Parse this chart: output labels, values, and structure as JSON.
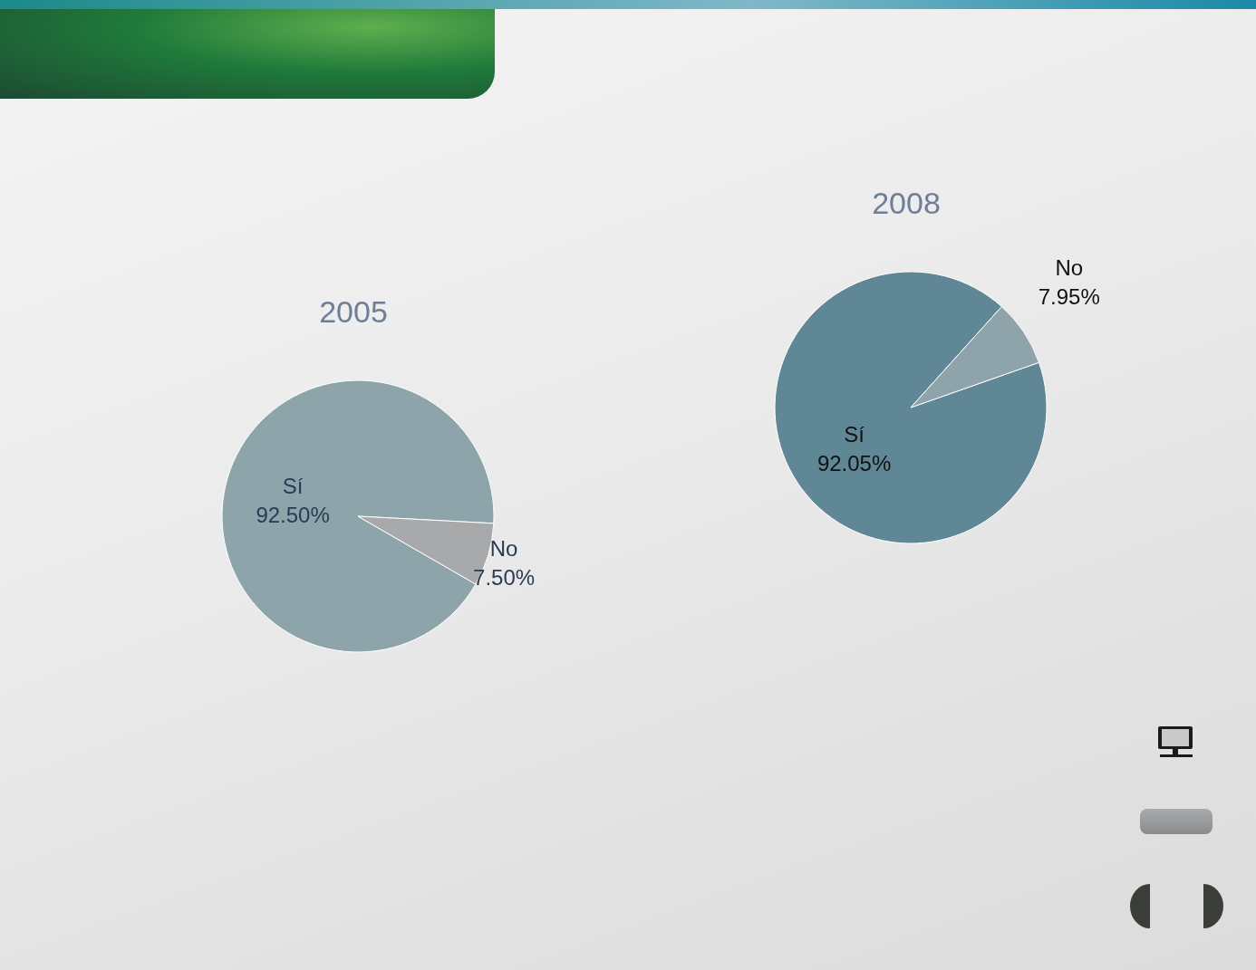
{
  "chart_data": [
    {
      "type": "pie",
      "title": "2005",
      "categories": [
        "Sí",
        "No"
      ],
      "values": [
        92.5,
        7.5
      ],
      "colors": [
        "#8ea4ab",
        "#a8a9aa"
      ],
      "value_labels": [
        "92.50%",
        "7.50%"
      ]
    },
    {
      "type": "pie",
      "title": "2008",
      "categories": [
        "Sí",
        "No"
      ],
      "values": [
        92.05,
        7.95
      ],
      "colors": [
        "#5f8796",
        "#8ea3aa"
      ],
      "value_labels": [
        "92.05%",
        "7.95%"
      ]
    }
  ]
}
